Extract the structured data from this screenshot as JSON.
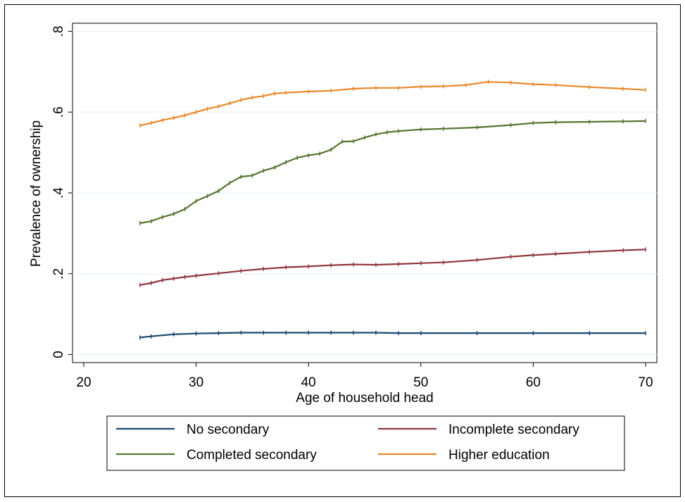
{
  "chart_data": {
    "type": "line",
    "xlabel": "Age of household head",
    "ylabel": "Prevalence of ownership",
    "xlim": [
      19,
      71
    ],
    "ylim": [
      -0.02,
      0.82
    ],
    "x_ticks": [
      20,
      30,
      40,
      50,
      60,
      70
    ],
    "x_tick_labels": [
      "20",
      "30",
      "40",
      "50",
      "60",
      "70"
    ],
    "y_ticks": [
      0,
      0.2,
      0.4,
      0.6,
      0.8
    ],
    "y_tick_labels": [
      "0",
      ".2",
      ".4",
      ".6",
      ".8"
    ],
    "grid": true,
    "legend_position": "bottom",
    "series": [
      {
        "name": "No secondary",
        "color": "#1a476f",
        "x": [
          25,
          26,
          28,
          30,
          32,
          34,
          36,
          38,
          40,
          42,
          44,
          46,
          48,
          50,
          55,
          60,
          65,
          70
        ],
        "values": [
          0.042,
          0.045,
          0.05,
          0.052,
          0.053,
          0.054,
          0.054,
          0.054,
          0.054,
          0.054,
          0.054,
          0.054,
          0.053,
          0.053,
          0.053,
          0.053,
          0.053,
          0.053
        ]
      },
      {
        "name": "Incomplete secondary",
        "color": "#90353b",
        "x": [
          25,
          26,
          27,
          28,
          29,
          30,
          32,
          34,
          36,
          38,
          40,
          42,
          44,
          46,
          48,
          50,
          52,
          55,
          58,
          60,
          62,
          65,
          68,
          70
        ],
        "values": [
          0.172,
          0.177,
          0.184,
          0.188,
          0.192,
          0.195,
          0.201,
          0.207,
          0.212,
          0.216,
          0.218,
          0.221,
          0.223,
          0.222,
          0.224,
          0.226,
          0.228,
          0.234,
          0.242,
          0.246,
          0.249,
          0.254,
          0.258,
          0.26
        ]
      },
      {
        "name": "Completed secondary",
        "color": "#55752f",
        "x": [
          25,
          26,
          27,
          28,
          29,
          30,
          31,
          32,
          33,
          34,
          35,
          36,
          37,
          38,
          39,
          40,
          41,
          42,
          43,
          44,
          45,
          46,
          47,
          48,
          50,
          52,
          55,
          58,
          60,
          62,
          65,
          68,
          70
        ],
        "values": [
          0.325,
          0.33,
          0.34,
          0.348,
          0.36,
          0.38,
          0.392,
          0.405,
          0.425,
          0.44,
          0.443,
          0.455,
          0.463,
          0.476,
          0.487,
          0.493,
          0.497,
          0.507,
          0.527,
          0.528,
          0.537,
          0.545,
          0.55,
          0.553,
          0.557,
          0.559,
          0.562,
          0.568,
          0.573,
          0.575,
          0.576,
          0.577,
          0.578
        ]
      },
      {
        "name": "Higher education",
        "color": "#e8882a",
        "x": [
          25,
          26,
          27,
          28,
          29,
          30,
          31,
          32,
          33,
          34,
          35,
          36,
          37,
          38,
          40,
          42,
          44,
          46,
          48,
          50,
          52,
          54,
          56,
          58,
          60,
          62,
          65,
          68,
          70
        ],
        "values": [
          0.567,
          0.573,
          0.58,
          0.586,
          0.592,
          0.6,
          0.608,
          0.614,
          0.622,
          0.63,
          0.636,
          0.64,
          0.646,
          0.648,
          0.651,
          0.653,
          0.658,
          0.66,
          0.66,
          0.663,
          0.664,
          0.667,
          0.675,
          0.673,
          0.669,
          0.667,
          0.662,
          0.658,
          0.655
        ]
      }
    ]
  }
}
